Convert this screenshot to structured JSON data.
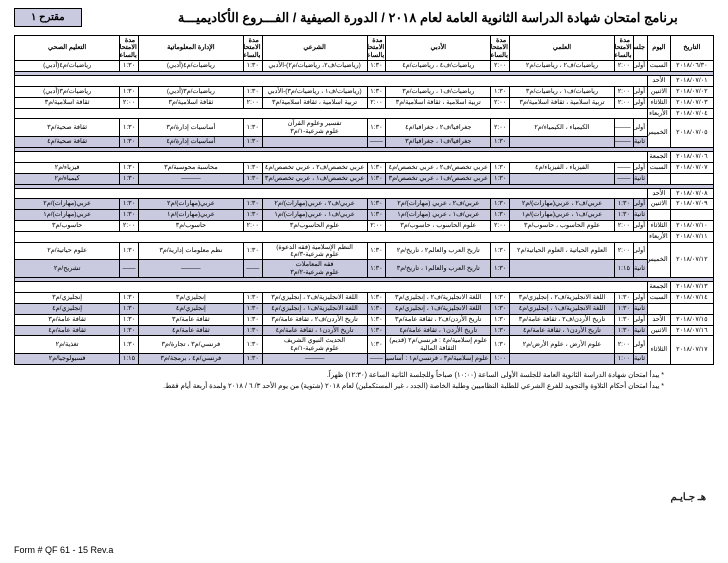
{
  "title": "برنامج امتحان شهادة الدراسة الثانوية العامة لعام ٢٠١٨ / الدورة الصيفية / الفـــروع الأكاديميـــة",
  "badge": "مقترح ١",
  "form_no": "Form # QF 61 - 15  Rev.a",
  "stamp": "هـ جـايـم",
  "note1": "* يبدأ امتحان شهادة الدراسة الثانوية العامة للجلسة الأولى الساعة (١٠:٠٠) صباحاً وللجلسة الثانية الساعة (١٢:٣٠) ظهراً.",
  "note2": "* يبدأ امتحان أحكام التلاوة والتجويد للفرع الشرعي للطلبة النظاميين وطلبة الخاصة (الجدد ، غير المستكملين) لعام ٢٠١٨ (شتوية) من يوم الأحد ٣/ ٦ / ٢٠١٨ ولمدة أربعة أيام فقط.",
  "head": {
    "date": "التاريخ",
    "day": "اليوم",
    "sess": "جلسة",
    "dur": "مدة الامتحان بالساعة",
    "sci": "العلمي",
    "lit": "الأدبي",
    "shar": "الشرعي",
    "info": "الإدارة المعلوماتية",
    "health": "التعليم الصحي"
  },
  "rows": [
    {
      "date": "٢٠١٨/٠٦/٣٠",
      "day": "السبت",
      "s": "أولى",
      "d0": "٢:٠٠",
      "c0": "رياضيات/ف٢ ، رياضيات/م٢",
      "d1": "٢:٠٠",
      "c1": "رياضيات/ف٤ ، رياضيات/م٤",
      "d2": "١:٣٠",
      "c2": "(رياضيات/ف٢، رياضيات/م٢)-الأدبي",
      "d3": "١:٣٠",
      "c3": "رياضيات/م٤(أدبي)",
      "d4": "١:٣٠",
      "c4": "رياضيات/م٤(أدبي)"
    },
    {
      "sep": true
    },
    {
      "date": "٢٠١٨/٠٧/٠١",
      "day": "الأحد"
    },
    {
      "date": "٢٠١٨/٠٧/٠٢",
      "day": "الاثنين",
      "s": "أولى",
      "d0": "٢:٠٠",
      "c0": "رياضيات/ف١ ، رياضيات/م٣",
      "d1": "١:٣٠",
      "c1": "رياضيات/ف١ ، رياضيات/م٣",
      "d2": "١:٣٠",
      "c2": "(رياضيات/ف١ ، رياضيات/م٣)-الأدبي",
      "d3": "١:٣٠",
      "c3": "رياضيات/م٣(أدبي)",
      "d4": "١:٣٠",
      "c4": "رياضيات/م٣(أدبي)"
    },
    {
      "date": "٢٠١٨/٠٧/٠٣",
      "day": "الثلاثاء",
      "s": "أولى",
      "d0": "٢:٠٠",
      "c0": "تربية اسلامية ، ثقافة اسلامية/م٣",
      "d1": "٢:٠٠",
      "c1": "تربية اسلامية ، ثقافة اسلامية/م٣",
      "d2": "٢:٠٠",
      "c2": "تربية اسلامية ، ثقافة اسلامية/م٣",
      "d3": "٢:٠٠",
      "c3": "ثقافة اسلامية/م٣",
      "d4": "٢:٠٠",
      "c4": "ثقافة اسلامية/م٣"
    },
    {
      "date": "٢٠١٨/٠٧/٠٤",
      "day": "الأربعاء"
    },
    {
      "date": "٢٠١٨/٠٧/٠٥",
      "day": "الخميس",
      "s2": true,
      "r1": {
        "s": "أولى",
        "d0": "———",
        "c0": "الكيمياء ، الكيمياء/م٢",
        "d1": "٢:٠٠",
        "c1": "جغرافيا/ف٢ ، جغرافيا/م٤",
        "d2": "١:٣٠",
        "c2": "تفسير وعلوم القرآن\nعلوم شرعية-١/م٣",
        "d3": "١:٣٠",
        "c3": "أساسيات إدارة/م٣",
        "d4": "١:٣٠",
        "c4": "ثقافة صحية/م٣"
      },
      "r2": {
        "s": "ثانية",
        "shade": true,
        "d0": "———",
        "c0": "",
        "d1": "١:٣٠",
        "c1": "جغرافيا/ف١ ، جغرافيا/م٣",
        "d2": "——",
        "c2": "",
        "d3": "١:٣٠",
        "c3": "أساسيات إدارة/م٤",
        "d4": "١:٣٠",
        "c4": "ثقافة صحية/م٤"
      }
    },
    {
      "sep": true
    },
    {
      "date": "٢٠١٨/٠٧/٠٦",
      "day": "الجمعة"
    },
    {
      "date": "٢٠١٨/٠٧/٠٧",
      "day": "السبت",
      "s": "أولى",
      "d0": "——",
      "c0": "الفيزياء ، الفيزياء/م٤",
      "d1": "١:٣٠",
      "c1": "عربي تخصص/ف٢ ، عربي تخصص/م٤",
      "d2": "١:٣٠",
      "c2": "عربي تخصص/ف٢ ، عربي تخصص/م٤",
      "d3": "١:٣٠",
      "c3": "محاسبة محوسبة/م٣",
      "d4": "١:٣٠",
      "c4": "فيزياء/م٢"
    },
    {
      "shade": true,
      "s": "ثانية",
      "d0": "——",
      "c0": "",
      "d1": "١:٣٠",
      "c1": "عربي تخصص/ف١ ، عربي تخصص/م٣",
      "d2": "١:٣٠",
      "c2": "عربي تخصص/ف١ ، عربي تخصص/م٣",
      "d3": "١:٣٠",
      "c3": "———",
      "d4": "١:٣٠",
      "c4": "كيمياء/م٢"
    },
    {
      "sep": true
    },
    {
      "date": "٢٠١٨/٠٧/٠٨",
      "day": "الأحد"
    },
    {
      "date": "٢٠١٨/٠٧/٠٩",
      "day": "الاثنين",
      "s": "أولى",
      "d0": "١:٣٠",
      "c0": "عربي/ف٢ ، عربي(مهارات)/م٢",
      "d1": "١:٣٠",
      "c1": "عربي/ف٢ ، عربي (مهارات)/م٢",
      "d2": "١:٣٠",
      "c2": "عربي/ف٢ ، عربي(مهارات)/م٢",
      "d3": "١:٣٠",
      "c3": "عربي(مهارات)/م٢",
      "d4": "١:٣٠",
      "c4": "عربي(مهارات)/م٢",
      "shade": true
    },
    {
      "shade": true,
      "s": "ثانية",
      "d0": "١:٣٠",
      "c0": "عربي/ف١ ، عربي(مهارات)/م١",
      "d1": "١:٣٠",
      "c1": "عربي/ف١ ، عربي (مهارات)/م١",
      "d2": "١:٣٠",
      "c2": "عربي/ف١ ، عربي(مهارات)/م١",
      "d3": "١:٣٠",
      "c3": "عربي(مهارات)/م١",
      "d4": "١:٣٠",
      "c4": "عربي(مهارات)/م١"
    },
    {
      "date": "٢٠١٨/٠٧/١٠",
      "day": "الثلاثاء",
      "s": "أولى",
      "d0": "٢:٠٠",
      "c0": "علوم الحاسوب ، حاسوب/م٣",
      "d1": "٢:٠٠",
      "c1": "علوم الحاسوب ، حاسوب/م٣",
      "d2": "٢:٠٠",
      "c2": "علوم الحاسوب/م٣",
      "d3": "٢:٠٠",
      "c3": "حاسوب/م٣",
      "d4": "٢:٠٠",
      "c4": "حاسوب/م٣"
    },
    {
      "date": "٢٠١٨/٠٧/١١",
      "day": "الأربعاء"
    },
    {
      "date": "٢٠١٨/٠٧/١٢",
      "day": "الخميس",
      "s2": true,
      "r1": {
        "s": "أولى",
        "d0": "٢:٠٠",
        "c0": "العلوم الحياتية ، العلوم الحياتية/م٢",
        "d1": "١:٣٠",
        "c1": "تاريخ العرب والعالم٢ ، تاريخ/م٢",
        "d2": "١:٣٠",
        "c2": "النظم الإسلامية (فقه الدعوة)\nعلوم شرعية-٣/م٤",
        "d3": "١:٣٠",
        "c3": "نظم معلومات إدارية/م٣",
        "d4": "١:٣٠",
        "c4": "علوم حياتية/م٢"
      },
      "r2": {
        "shade": true,
        "s": "ثانية",
        "d0": "١:١٥",
        "c0": "",
        "d1": "١:٣٠",
        "c1": "تاريخ العرب والعالم١ ، تاريخ/م٣",
        "d2": "١:٣٠",
        "c2": "فقه المعاملات\nعلوم شرعية-٢/م٣",
        "d3": "——",
        "c3": "———",
        "d4": "——",
        "c4": "تشريح/م٢"
      }
    },
    {
      "sep": true
    },
    {
      "date": "٢٠١٨/٠٧/١٣",
      "day": "الجمعة"
    },
    {
      "date": "٢٠١٨/٠٧/١٤",
      "day": "السبت",
      "s": "أولى",
      "d0": "١:٣٠",
      "c0": "اللغة الانجليزية/ف٢ ، إنجليزي/م٣",
      "d1": "١:٣٠",
      "c1": "اللغة الانجليزية/ف٢ ، إنجليزي/م٣",
      "d2": "١:٣٠",
      "c2": "اللغة الانجليزية/ف٢ ، إنجليزي/م٣",
      "d3": "١:٣٠",
      "c3": "إنجليزي/م٣",
      "d4": "١:٣٠",
      "c4": "إنجليزي/م٣"
    },
    {
      "shade": true,
      "s": "ثانية",
      "d0": "١:٣٠",
      "c0": "اللغة الانجليزية/ف١ ، إنجليزي/م٤",
      "d1": "١:٣٠",
      "c1": "اللغة الانجليزية/ف١ ، إنجليزي/م٤",
      "d2": "١:٣٠",
      "c2": "اللغة الانجليزية/ف١ ، إنجليزي/م٤",
      "d3": "١:٣٠",
      "c3": "إنجليزي/م٤",
      "d4": "١:٣٠",
      "c4": "إنجليزي/م٤"
    },
    {
      "date": "٢٠١٨/٠٧/١٥",
      "day": "الأحد",
      "s": "أولى",
      "d0": "١:٣٠",
      "c0": "تاريخ الأردن/ف٢ ، ثقافة عامة/م٣",
      "d1": "١:٣٠",
      "c1": "تاريخ الأردن/ف٢ ، ثقافة عامة/م٣",
      "d2": "١:٣٠",
      "c2": "تاريخ الأردن/ف٢ ، ثقافة عامة/م٣",
      "d3": "١:٣٠",
      "c3": "ثقافة عامة/م٣",
      "d4": "١:٣٠",
      "c4": "ثقافة عامة/م٣"
    },
    {
      "date": "٢٠١٨/٠٧/١٦",
      "day": "الاثنين",
      "shade": true,
      "s": "ثانية",
      "d0": "١:٣٠",
      "c0": "تاريخ الأردن١ ، ثقافة عامة/م٤",
      "d1": "١:٣٠",
      "c1": "تاريخ الأردن١ ، ثقافة عامة/م٤",
      "d2": "١:٣٠",
      "c2": "تاريخ الأردن١ ، ثقافة عامة/م٤",
      "d3": "١:٣٠",
      "c3": "ثقافة عامة/م٤",
      "d4": "١:٣٠",
      "c4": "ثقافة عامة/م٤"
    },
    {
      "date": "٢٠١٨/٠٧/١٧",
      "day": "الثلاثاء",
      "s2": true,
      "r1": {
        "s": "أولى",
        "d0": "٢:٠٠",
        "c0": "علوم الأرض ، علوم الأرض/م٢",
        "d1": "١:٣٠",
        "c1": "علوم إسلامية/م٤ : فرنسي/م٢ (قديم)\nالثقافة المالية",
        "d2": "١:٣٠",
        "c2": "الحديث النبوي الشريف\nعلوم شرعية-١/م٤",
        "d3": "١:٣٠",
        "c3": "فرنسي/م٣ ، تجارة/م٣",
        "d4": "١:٣٠",
        "c4": "تغذية/م٢"
      },
      "r2": {
        "shade": true,
        "s": "ثانية",
        "d0": "١:٠٠",
        "c0": "",
        "d1": "١:٠٠",
        "c1": "علوم إسلامية/م٣ ، فرنسي/م١ : أساسيات ادارة/م٤",
        "d2": "——",
        "c2": "———",
        "d3": "١:٣٠",
        "c3": "فرنسي/م٤ ، برمجة/م٣",
        "d4": "١:١٥",
        "c4": "فسيولوجيا/م٢"
      }
    }
  ]
}
